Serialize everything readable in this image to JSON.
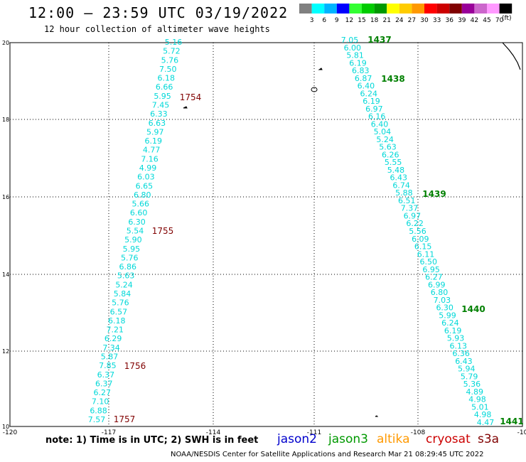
{
  "title": "12:00 – 23:59 UTC 03/19/2022",
  "subtitle": "12 hour collection of altimeter wave heights",
  "legend": {
    "units": "(ft)",
    "bins": [
      {
        "label": "3",
        "color": "#808080"
      },
      {
        "label": "6",
        "color": "#00ffff"
      },
      {
        "label": "9",
        "color": "#00b4ff"
      },
      {
        "label": "12",
        "color": "#0000ff"
      },
      {
        "label": "15",
        "color": "#33ff33"
      },
      {
        "label": "18",
        "color": "#00cc00"
      },
      {
        "label": "21",
        "color": "#009900"
      },
      {
        "label": "24",
        "color": "#ffff00"
      },
      {
        "label": "27",
        "color": "#ffcc00"
      },
      {
        "label": "30",
        "color": "#ff9900"
      },
      {
        "label": "33",
        "color": "#ff0000"
      },
      {
        "label": "36",
        "color": "#cc0000"
      },
      {
        "label": "39",
        "color": "#800000"
      },
      {
        "label": "42",
        "color": "#990099"
      },
      {
        "label": "45",
        "color": "#cc66cc"
      },
      {
        "label": "70",
        "color": "#ff99ff"
      },
      {
        "label": "",
        "color": "#000000"
      }
    ]
  },
  "axes": {
    "lon_ticks": [
      "-120",
      "-117",
      "-114",
      "-111",
      "-108",
      "-10"
    ],
    "lat_ticks": [
      "20",
      "18",
      "16",
      "14",
      "12",
      "10"
    ],
    "lon_range": [
      -120,
      -105
    ],
    "lat_range": [
      10,
      20
    ]
  },
  "track_west": {
    "satellite": "jason2",
    "heights": [
      "5.16",
      "5.72",
      "5.76",
      "7.50",
      "6.18",
      "6.66",
      "5.95",
      "7.45",
      "6.33",
      "6.63",
      "5.97",
      "6.19",
      "4.77",
      "7.16",
      "4.99",
      "6.03",
      "6.65",
      "6.80",
      "5.66",
      "6.60",
      "6.30",
      "5.54",
      "5.90",
      "5.95",
      "5.76",
      "6.86",
      "5.63",
      "5.24",
      "5.84",
      "5.76",
      "6.57",
      "6.18",
      "7.21",
      "6.29",
      "7.34",
      "5.87",
      "7.85",
      "6.37",
      "6.37",
      "6.27",
      "7.10",
      "6.88",
      "7.57"
    ],
    "time_labels": [
      "1754",
      "1755",
      "1756",
      "1757"
    ],
    "time_label_color": "#800000"
  },
  "track_east": {
    "satellite": "jason3",
    "heights": [
      "7.05",
      "6.00",
      "5.81",
      "6.19",
      "6.83",
      "6.87",
      "6.40",
      "6.24",
      "6.19",
      "6.97",
      "6.16",
      "6.40",
      "5.04",
      "5.24",
      "5.63",
      "6.26",
      "5.55",
      "5.48",
      "6.43",
      "6.74",
      "5.88",
      "6.51",
      "7.37",
      "6.97",
      "6.22",
      "5.56",
      "6.09",
      "6.15",
      "6.11",
      "6.50",
      "6.95",
      "6.27",
      "6.99",
      "6.80",
      "7.03",
      "6.30",
      "5.99",
      "6.24",
      "6.19",
      "5.93",
      "6.13",
      "6.36",
      "6.43",
      "5.94",
      "5.79",
      "5.36",
      "4.89",
      "4.98",
      "5.01",
      "4.98",
      "4.47"
    ],
    "time_labels": [
      "1437",
      "1438",
      "1439",
      "1440",
      "1441"
    ],
    "time_label_color": "#008000"
  },
  "height_color": "#00d8d8",
  "note": "note:  1) Time is in UTC;  2) SWH is in feet",
  "satellites": [
    {
      "name": "jason2",
      "color": "#0000cc"
    },
    {
      "name": "jason3",
      "color": "#009900"
    },
    {
      "name": "altika",
      "color": "#ff9900"
    },
    {
      "name": "cryosat",
      "color": "#cc0000"
    },
    {
      "name": "s3a",
      "color": "#800000"
    }
  ],
  "credit": "NOAA/NESDIS Center for Satellite Applications and Research    Mar 21 08:29:45 UTC 2022"
}
